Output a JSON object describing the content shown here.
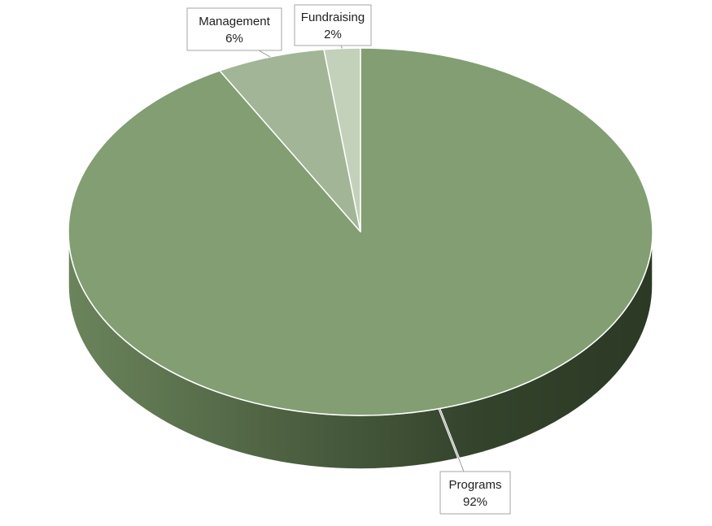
{
  "chart_data": {
    "type": "pie",
    "style": "3d",
    "title": "",
    "categories": [
      "Programs",
      "Management",
      "Fundraising"
    ],
    "values": [
      92,
      6,
      2
    ],
    "value_labels": [
      "92%",
      "6%",
      "2%"
    ],
    "colors": [
      "#829e72",
      "#a2b596",
      "#c3d0ba"
    ],
    "label_style": "callout boxes with leader lines",
    "legend": "none"
  }
}
